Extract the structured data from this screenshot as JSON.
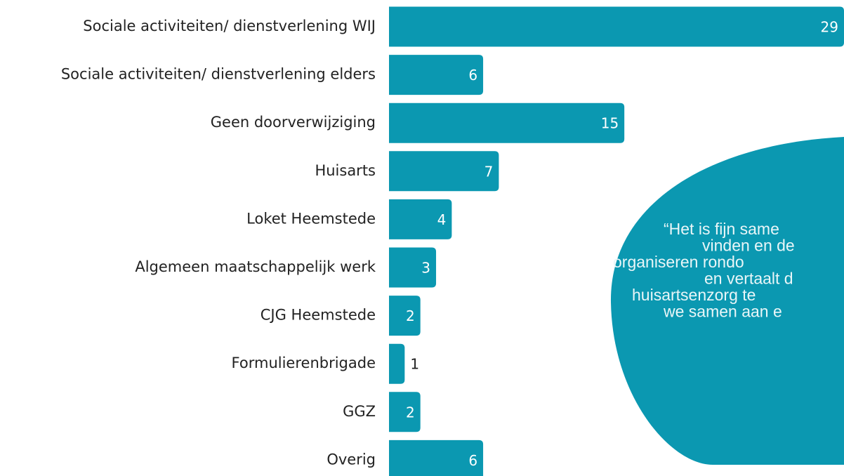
{
  "chart_data": {
    "type": "bar",
    "orientation": "horizontal",
    "categories": [
      "Sociale activiteiten/ dienstverlening WIJ",
      "Sociale activiteiten/ dienstverlening elders",
      "Geen doorverwijziging",
      "Huisarts",
      "Loket Heemstede",
      "Algemeen maatschappelijk werk",
      "CJG Heemstede",
      "Formulierenbrigade",
      "GGZ",
      "Overig"
    ],
    "values": [
      29,
      6,
      15,
      7,
      4,
      3,
      2,
      1,
      2,
      6
    ],
    "color": "#0b98b1",
    "xlim": [
      0,
      29
    ],
    "quote": [
      "“Het is fijn same",
      "vinden en de",
      "organiseren rondo",
      "en vertaalt d",
      "huisartsenzorg te",
      "we samen aan e"
    ]
  }
}
